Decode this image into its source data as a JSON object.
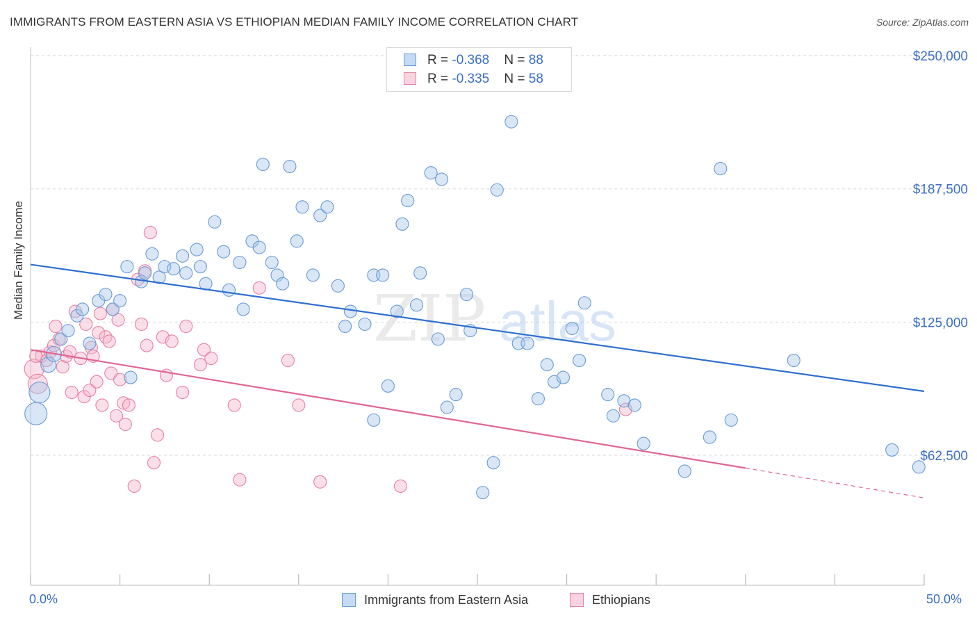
{
  "header": {
    "title": "IMMIGRANTS FROM EASTERN ASIA VS ETHIOPIAN MEDIAN FAMILY INCOME CORRELATION CHART",
    "source": "Source: ZipAtlas.com"
  },
  "watermark": {
    "zip": "ZIP",
    "atlas": "atlas"
  },
  "legend": {
    "rows": [
      {
        "r_label": "R = ",
        "r_value": "-0.368",
        "n_label": "N = ",
        "n_value": "88"
      },
      {
        "r_label": "R = ",
        "r_value": "-0.335",
        "n_label": "N = ",
        "n_value": "58"
      }
    ]
  },
  "bottom_legend": {
    "series_a": "Immigrants from Eastern Asia",
    "series_b": "Ethiopians"
  },
  "x_axis": {
    "min_label": "0.0%",
    "max_label": "50.0%"
  },
  "y_axis": {
    "label": "Median Family Income",
    "tick_labels": [
      "$250,000",
      "$187,500",
      "$125,000",
      "$62,500"
    ]
  },
  "colors": {
    "blue_fill": "#a9c8ec",
    "blue_stroke": "#6a9ad6",
    "blue_line": "#2e6fd0",
    "pink_fill": "#f6b9cc",
    "pink_stroke": "#e77fa0",
    "pink_line": "#e06690",
    "grid": "#d5d5d5",
    "axis_text": "#3a6fc4"
  },
  "chart_data": {
    "type": "scatter",
    "title": "IMMIGRANTS FROM EASTERN ASIA VS ETHIOPIAN MEDIAN FAMILY INCOME CORRELATION CHART",
    "xlabel": "",
    "ylabel": "Median Family Income",
    "xlim": [
      0,
      50
    ],
    "ylim": [
      0,
      262000
    ],
    "yticks": [
      62500,
      125000,
      187500,
      250000
    ],
    "grid": true,
    "legend_position": "top-center",
    "series": [
      {
        "name": "Immigrants from Eastern Asia",
        "color": "#a9c8ec",
        "r": -0.368,
        "n": 88,
        "trend": {
          "x": [
            0,
            50
          ],
          "y": [
            152000,
            92500
          ]
        },
        "points": [
          {
            "x": 0.3,
            "y": 82000
          },
          {
            "x": 0.5,
            "y": 92000
          },
          {
            "x": 1.0,
            "y": 105000
          },
          {
            "x": 1.3,
            "y": 110000
          },
          {
            "x": 1.7,
            "y": 117000
          },
          {
            "x": 2.1,
            "y": 121000
          },
          {
            "x": 2.6,
            "y": 128000
          },
          {
            "x": 2.9,
            "y": 131000
          },
          {
            "x": 3.3,
            "y": 115000
          },
          {
            "x": 3.8,
            "y": 135000
          },
          {
            "x": 4.2,
            "y": 138000
          },
          {
            "x": 4.6,
            "y": 131000
          },
          {
            "x": 5.0,
            "y": 135000
          },
          {
            "x": 5.4,
            "y": 151000
          },
          {
            "x": 5.6,
            "y": 99000
          },
          {
            "x": 6.2,
            "y": 144000
          },
          {
            "x": 6.4,
            "y": 148000
          },
          {
            "x": 6.8,
            "y": 157000
          },
          {
            "x": 7.2,
            "y": 146000
          },
          {
            "x": 7.5,
            "y": 151000
          },
          {
            "x": 8.0,
            "y": 150000
          },
          {
            "x": 8.5,
            "y": 156000
          },
          {
            "x": 8.7,
            "y": 148000
          },
          {
            "x": 9.3,
            "y": 159000
          },
          {
            "x": 9.5,
            "y": 151000
          },
          {
            "x": 9.8,
            "y": 143000
          },
          {
            "x": 10.3,
            "y": 172000
          },
          {
            "x": 10.8,
            "y": 158000
          },
          {
            "x": 11.1,
            "y": 140000
          },
          {
            "x": 11.7,
            "y": 153000
          },
          {
            "x": 11.9,
            "y": 131000
          },
          {
            "x": 12.4,
            "y": 163000
          },
          {
            "x": 12.8,
            "y": 160000
          },
          {
            "x": 13.0,
            "y": 199000
          },
          {
            "x": 13.5,
            "y": 153000
          },
          {
            "x": 13.8,
            "y": 147000
          },
          {
            "x": 14.1,
            "y": 143000
          },
          {
            "x": 14.5,
            "y": 198000
          },
          {
            "x": 14.9,
            "y": 163000
          },
          {
            "x": 15.2,
            "y": 179000
          },
          {
            "x": 15.8,
            "y": 147000
          },
          {
            "x": 16.2,
            "y": 175000
          },
          {
            "x": 16.6,
            "y": 179000
          },
          {
            "x": 17.2,
            "y": 142000
          },
          {
            "x": 17.6,
            "y": 123000
          },
          {
            "x": 17.9,
            "y": 130000
          },
          {
            "x": 18.7,
            "y": 124000
          },
          {
            "x": 19.2,
            "y": 147000
          },
          {
            "x": 19.2,
            "y": 79000
          },
          {
            "x": 19.7,
            "y": 147000
          },
          {
            "x": 20.0,
            "y": 95000
          },
          {
            "x": 20.5,
            "y": 130000
          },
          {
            "x": 20.8,
            "y": 171000
          },
          {
            "x": 21.1,
            "y": 182000
          },
          {
            "x": 21.6,
            "y": 133000
          },
          {
            "x": 21.8,
            "y": 148000
          },
          {
            "x": 22.4,
            "y": 195000
          },
          {
            "x": 22.8,
            "y": 117000
          },
          {
            "x": 23.0,
            "y": 192000
          },
          {
            "x": 23.3,
            "y": 85000
          },
          {
            "x": 23.8,
            "y": 91000
          },
          {
            "x": 24.4,
            "y": 138000
          },
          {
            "x": 24.6,
            "y": 121000
          },
          {
            "x": 25.9,
            "y": 59000
          },
          {
            "x": 25.3,
            "y": 45000
          },
          {
            "x": 26.1,
            "y": 187000
          },
          {
            "x": 26.9,
            "y": 219000
          },
          {
            "x": 27.3,
            "y": 115000
          },
          {
            "x": 27.8,
            "y": 115000
          },
          {
            "x": 28.4,
            "y": 89000
          },
          {
            "x": 28.9,
            "y": 105000
          },
          {
            "x": 29.3,
            "y": 97000
          },
          {
            "x": 29.8,
            "y": 99000
          },
          {
            "x": 30.3,
            "y": 122000
          },
          {
            "x": 30.7,
            "y": 107000
          },
          {
            "x": 31.0,
            "y": 134000
          },
          {
            "x": 32.3,
            "y": 91000
          },
          {
            "x": 32.6,
            "y": 81000
          },
          {
            "x": 33.2,
            "y": 88000
          },
          {
            "x": 33.8,
            "y": 86000
          },
          {
            "x": 34.3,
            "y": 68000
          },
          {
            "x": 36.6,
            "y": 55000
          },
          {
            "x": 38.0,
            "y": 71000
          },
          {
            "x": 38.6,
            "y": 197000
          },
          {
            "x": 39.2,
            "y": 79000
          },
          {
            "x": 42.7,
            "y": 107000
          },
          {
            "x": 48.2,
            "y": 65000
          },
          {
            "x": 49.7,
            "y": 57000
          }
        ]
      },
      {
        "name": "Ethiopians",
        "color": "#f6b9cc",
        "r": -0.335,
        "n": 58,
        "trend": {
          "x": [
            0,
            40
          ],
          "y": [
            112000,
            56500
          ]
        },
        "trend_dashed": {
          "x": [
            40,
            50
          ],
          "y": [
            56500,
            42500
          ]
        },
        "points": [
          {
            "x": 0.2,
            "y": 103000
          },
          {
            "x": 0.4,
            "y": 96000
          },
          {
            "x": 0.6,
            "y": 109000
          },
          {
            "x": 0.9,
            "y": 107000
          },
          {
            "x": 1.1,
            "y": 111000
          },
          {
            "x": 1.3,
            "y": 114000
          },
          {
            "x": 1.4,
            "y": 123000
          },
          {
            "x": 1.6,
            "y": 117000
          },
          {
            "x": 1.8,
            "y": 104000
          },
          {
            "x": 2.0,
            "y": 109000
          },
          {
            "x": 2.2,
            "y": 111000
          },
          {
            "x": 2.3,
            "y": 92000
          },
          {
            "x": 2.5,
            "y": 130000
          },
          {
            "x": 2.8,
            "y": 108000
          },
          {
            "x": 3.0,
            "y": 90000
          },
          {
            "x": 3.1,
            "y": 124000
          },
          {
            "x": 3.3,
            "y": 93000
          },
          {
            "x": 3.4,
            "y": 113000
          },
          {
            "x": 3.5,
            "y": 109000
          },
          {
            "x": 3.7,
            "y": 97000
          },
          {
            "x": 3.8,
            "y": 120000
          },
          {
            "x": 3.9,
            "y": 129000
          },
          {
            "x": 4.0,
            "y": 86000
          },
          {
            "x": 4.2,
            "y": 118000
          },
          {
            "x": 4.4,
            "y": 116000
          },
          {
            "x": 4.5,
            "y": 101000
          },
          {
            "x": 4.6,
            "y": 131000
          },
          {
            "x": 4.8,
            "y": 81000
          },
          {
            "x": 4.9,
            "y": 126000
          },
          {
            "x": 5.0,
            "y": 98000
          },
          {
            "x": 5.2,
            "y": 87000
          },
          {
            "x": 5.3,
            "y": 77000
          },
          {
            "x": 5.5,
            "y": 86000
          },
          {
            "x": 5.8,
            "y": 48000
          },
          {
            "x": 6.0,
            "y": 145000
          },
          {
            "x": 6.2,
            "y": 124000
          },
          {
            "x": 6.4,
            "y": 149000
          },
          {
            "x": 6.5,
            "y": 114000
          },
          {
            "x": 6.7,
            "y": 167000
          },
          {
            "x": 6.9,
            "y": 59000
          },
          {
            "x": 7.1,
            "y": 72000
          },
          {
            "x": 7.4,
            "y": 118000
          },
          {
            "x": 7.6,
            "y": 100000
          },
          {
            "x": 7.9,
            "y": 116000
          },
          {
            "x": 8.5,
            "y": 92000
          },
          {
            "x": 8.7,
            "y": 123000
          },
          {
            "x": 9.5,
            "y": 105000
          },
          {
            "x": 9.7,
            "y": 112000
          },
          {
            "x": 10.1,
            "y": 108000
          },
          {
            "x": 11.4,
            "y": 86000
          },
          {
            "x": 11.7,
            "y": 51000
          },
          {
            "x": 12.8,
            "y": 141000
          },
          {
            "x": 14.4,
            "y": 107000
          },
          {
            "x": 15.0,
            "y": 86000
          },
          {
            "x": 16.2,
            "y": 50000
          },
          {
            "x": 20.7,
            "y": 48000
          },
          {
            "x": 33.3,
            "y": 84000
          },
          {
            "x": 0.3,
            "y": 109000
          }
        ]
      }
    ]
  }
}
